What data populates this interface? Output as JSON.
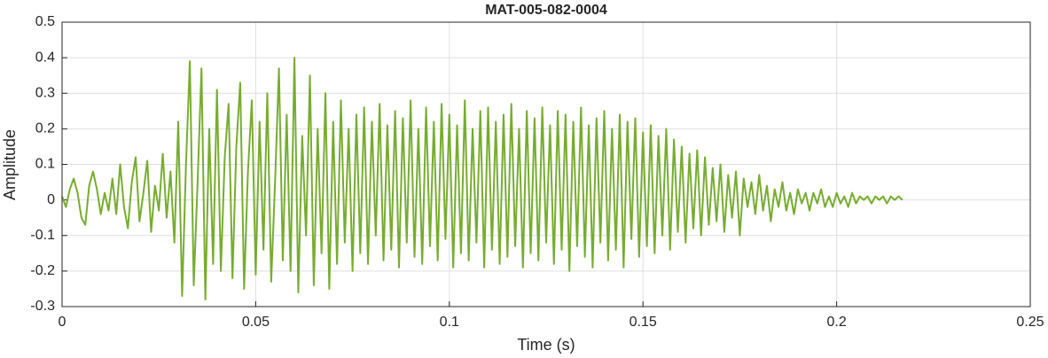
{
  "chart_data": {
    "type": "line",
    "title": "MAT-005-082-0004",
    "xlabel": "Time (s)",
    "ylabel": "Amplitude",
    "x": [
      0,
      0.001,
      0.002,
      0.003,
      0.004,
      0.005,
      0.006,
      0.007,
      0.008,
      0.009,
      0.01,
      0.011,
      0.012,
      0.013,
      0.014,
      0.015,
      0.016,
      0.017,
      0.018,
      0.019,
      0.02,
      0.021,
      0.022,
      0.023,
      0.024,
      0.025,
      0.026,
      0.027,
      0.028,
      0.029,
      0.03,
      0.031,
      0.032,
      0.033,
      0.034,
      0.035,
      0.036,
      0.037,
      0.038,
      0.039,
      0.04,
      0.041,
      0.042,
      0.043,
      0.044,
      0.045,
      0.046,
      0.047,
      0.048,
      0.049,
      0.05,
      0.051,
      0.052,
      0.053,
      0.054,
      0.055,
      0.056,
      0.057,
      0.058,
      0.059,
      0.06,
      0.061,
      0.062,
      0.063,
      0.064,
      0.065,
      0.066,
      0.067,
      0.068,
      0.069,
      0.07,
      0.071,
      0.072,
      0.073,
      0.074,
      0.075,
      0.076,
      0.077,
      0.078,
      0.079,
      0.08,
      0.081,
      0.082,
      0.083,
      0.084,
      0.085,
      0.086,
      0.087,
      0.088,
      0.089,
      0.09,
      0.091,
      0.092,
      0.093,
      0.094,
      0.095,
      0.096,
      0.097,
      0.098,
      0.099,
      0.1,
      0.101,
      0.102,
      0.103,
      0.104,
      0.105,
      0.106,
      0.107,
      0.108,
      0.109,
      0.11,
      0.111,
      0.112,
      0.113,
      0.114,
      0.115,
      0.116,
      0.117,
      0.118,
      0.119,
      0.12,
      0.121,
      0.122,
      0.123,
      0.124,
      0.125,
      0.126,
      0.127,
      0.128,
      0.129,
      0.13,
      0.131,
      0.132,
      0.133,
      0.134,
      0.135,
      0.136,
      0.137,
      0.138,
      0.139,
      0.14,
      0.141,
      0.142,
      0.143,
      0.144,
      0.145,
      0.146,
      0.147,
      0.148,
      0.149,
      0.15,
      0.151,
      0.152,
      0.153,
      0.154,
      0.155,
      0.156,
      0.157,
      0.158,
      0.159,
      0.16,
      0.161,
      0.162,
      0.163,
      0.164,
      0.165,
      0.166,
      0.167,
      0.168,
      0.169,
      0.17,
      0.171,
      0.172,
      0.173,
      0.174,
      0.175,
      0.176,
      0.177,
      0.178,
      0.179,
      0.18,
      0.181,
      0.182,
      0.183,
      0.184,
      0.185,
      0.186,
      0.187,
      0.188,
      0.189,
      0.19,
      0.191,
      0.192,
      0.193,
      0.194,
      0.195,
      0.196,
      0.197,
      0.198,
      0.199,
      0.2,
      0.201,
      0.202,
      0.203,
      0.204,
      0.205,
      0.206,
      0.207,
      0.208,
      0.209,
      0.21,
      0.211,
      0.212,
      0.213,
      0.214,
      0.215,
      0.216,
      0.217
    ],
    "series": [
      {
        "color": "#77ac30",
        "values": [
          0.01,
          -0.02,
          0.03,
          0.06,
          0.02,
          -0.05,
          -0.07,
          0.04,
          0.08,
          0.03,
          -0.04,
          0.02,
          -0.03,
          0.06,
          -0.04,
          0.1,
          -0.02,
          -0.08,
          0.05,
          0.12,
          -0.06,
          0.02,
          0.11,
          -0.09,
          0.04,
          -0.03,
          0.13,
          -0.05,
          0.08,
          -0.12,
          0.22,
          -0.27,
          0.1,
          0.39,
          -0.24,
          0.05,
          0.37,
          -0.28,
          0.2,
          -0.18,
          0.31,
          -0.2,
          0.12,
          0.27,
          -0.22,
          0.15,
          0.33,
          -0.25,
          0.08,
          0.28,
          -0.21,
          0.22,
          -0.14,
          0.3,
          -0.23,
          0.05,
          0.37,
          -0.17,
          0.24,
          -0.2,
          0.4,
          -0.26,
          0.18,
          -0.1,
          0.35,
          -0.24,
          0.2,
          -0.15,
          0.3,
          -0.25,
          0.22,
          -0.18,
          0.28,
          -0.12,
          0.2,
          -0.2,
          0.24,
          -0.15,
          0.26,
          -0.18,
          0.22,
          -0.1,
          0.27,
          -0.17,
          0.21,
          -0.14,
          0.25,
          -0.19,
          0.23,
          -0.12,
          0.28,
          -0.16,
          0.2,
          -0.18,
          0.26,
          -0.13,
          0.22,
          -0.17,
          0.27,
          -0.11,
          0.24,
          -0.19,
          0.21,
          -0.15,
          0.28,
          -0.17,
          0.2,
          -0.12,
          0.25,
          -0.19,
          0.26,
          -0.14,
          0.22,
          -0.18,
          0.24,
          -0.16,
          0.27,
          -0.13,
          0.2,
          -0.19,
          0.25,
          -0.15,
          0.23,
          -0.17,
          0.26,
          -0.12,
          0.21,
          -0.18,
          0.25,
          -0.14,
          0.24,
          -0.2,
          0.22,
          -0.13,
          0.26,
          -0.16,
          0.21,
          -0.19,
          0.23,
          -0.12,
          0.25,
          -0.17,
          0.2,
          -0.14,
          0.24,
          -0.19,
          0.22,
          -0.11,
          0.23,
          -0.16,
          0.19,
          -0.13,
          0.21,
          -0.15,
          0.18,
          -0.1,
          0.2,
          -0.14,
          0.17,
          -0.09,
          0.15,
          -0.12,
          0.13,
          -0.08,
          0.14,
          -0.1,
          0.12,
          -0.07,
          0.09,
          -0.06,
          0.1,
          -0.09,
          0.07,
          -0.05,
          0.08,
          -0.1,
          0.06,
          -0.02,
          0.05,
          -0.04,
          0.07,
          -0.03,
          0.04,
          -0.06,
          0.03,
          -0.02,
          0.05,
          -0.03,
          0.02,
          -0.04,
          0.03,
          -0.01,
          0.02,
          -0.03,
          0.02,
          -0.01,
          0.03,
          -0.02,
          0.01,
          -0.02,
          0.02,
          -0.01,
          0.01,
          -0.02,
          0.02,
          -0.01,
          0.01,
          0,
          0.01,
          -0.01,
          0.01,
          0,
          0.01,
          -0.01,
          0.01,
          0,
          0.01,
          0
        ]
      }
    ],
    "xlim": [
      0,
      0.25
    ],
    "xticks": [
      0,
      0.05,
      0.1,
      0.15,
      0.2,
      0.25
    ],
    "ylim": [
      -0.3,
      0.5
    ],
    "yticks": [
      -0.3,
      -0.2,
      -0.1,
      0,
      0.1,
      0.2,
      0.3,
      0.4,
      0.5
    ],
    "grid": true
  }
}
